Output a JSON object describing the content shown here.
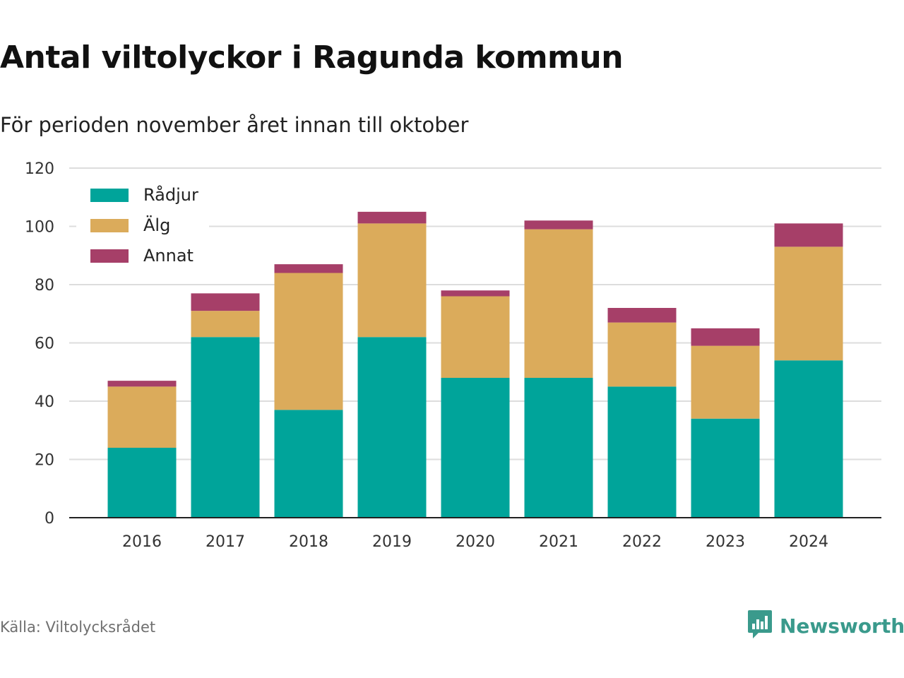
{
  "title": "Antal viltolyckor i Ragunda kommun",
  "subtitle": "För perioden november året innan till oktober",
  "source": "Källa: Viltolycksrådet",
  "brand": "Newsworthy",
  "colors": {
    "radjur": "#00a49a",
    "alg": "#dbab5b",
    "annat": "#a63f68",
    "grid": "#dddddd",
    "axis": "#222222",
    "tick_text": "#333333",
    "brand": "#3a9a8c"
  },
  "chart_data": {
    "type": "bar",
    "stacked": true,
    "title": "Antal viltolyckor i Ragunda kommun",
    "subtitle": "För perioden november året innan till oktober",
    "xlabel": "",
    "ylabel": "",
    "ylim": [
      0,
      120
    ],
    "yticks": [
      0,
      20,
      40,
      60,
      80,
      100,
      120
    ],
    "grid": "horizontal",
    "legend_position": "top-left",
    "categories": [
      "2016",
      "2017",
      "2018",
      "2019",
      "2020",
      "2021",
      "2022",
      "2023",
      "2024"
    ],
    "series": [
      {
        "name": "Rådjur",
        "color": "#00a49a",
        "values": [
          24,
          62,
          37,
          62,
          48,
          48,
          45,
          34,
          54
        ]
      },
      {
        "name": "Älg",
        "color": "#dbab5b",
        "values": [
          21,
          9,
          47,
          39,
          28,
          51,
          22,
          25,
          39
        ]
      },
      {
        "name": "Annat",
        "color": "#a63f68",
        "values": [
          2,
          6,
          3,
          4,
          2,
          3,
          5,
          6,
          8
        ]
      }
    ]
  }
}
